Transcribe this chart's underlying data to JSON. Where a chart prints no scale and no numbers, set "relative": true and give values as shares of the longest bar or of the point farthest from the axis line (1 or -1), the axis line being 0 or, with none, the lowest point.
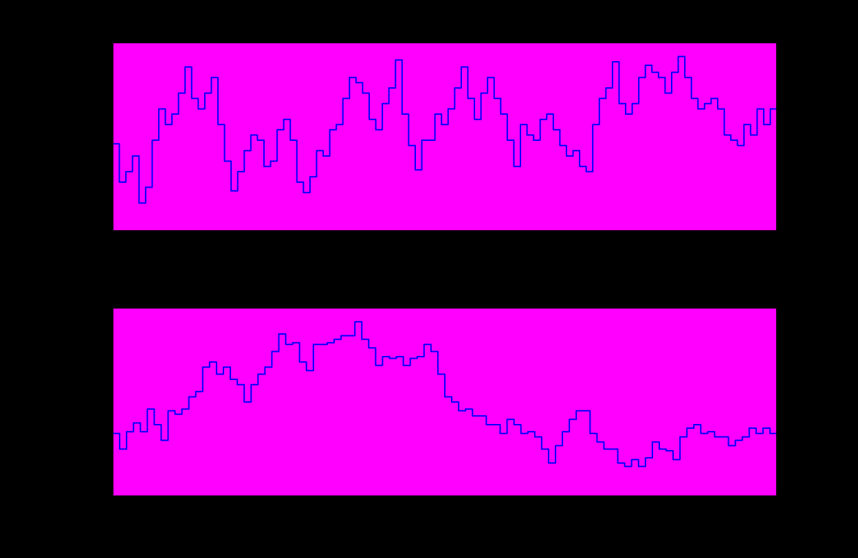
{
  "chart_data": [
    {
      "type": "step",
      "relative": true,
      "categories": [
        null,
        null,
        null,
        null,
        null,
        null,
        null,
        null,
        null,
        null,
        null,
        null,
        null,
        null,
        null,
        null,
        null,
        null,
        null,
        null,
        null,
        null,
        null,
        null,
        null,
        null,
        null,
        null,
        null,
        null,
        null,
        null,
        null,
        null,
        null,
        null,
        null,
        null,
        null,
        null,
        null,
        null,
        null,
        null,
        null,
        null,
        null,
        null,
        null,
        null,
        null,
        null,
        null,
        null,
        null,
        null,
        null,
        null,
        null,
        null,
        null,
        null,
        null,
        null,
        null,
        null,
        null,
        null,
        null,
        null,
        null,
        null,
        null,
        null,
        null,
        null,
        null,
        null,
        null,
        null,
        null,
        null,
        null,
        null,
        null,
        null,
        null,
        null,
        null,
        null,
        null,
        null,
        null,
        null,
        null,
        null,
        null,
        null,
        null,
        null,
        null
      ],
      "series": [
        {
          "color": "#0000ff",
          "values": [
            0.5,
            0.28,
            0.34,
            0.43,
            0.16,
            0.25,
            0.52,
            0.7,
            0.61,
            0.67,
            0.79,
            0.94,
            0.76,
            0.7,
            0.79,
            0.88,
            0.61,
            0.4,
            0.23,
            0.34,
            0.46,
            0.55,
            0.52,
            0.37,
            0.4,
            0.58,
            0.64,
            0.52,
            0.28,
            0.22,
            0.31,
            0.46,
            0.43,
            0.58,
            0.61,
            0.76,
            0.88,
            0.85,
            0.79,
            0.64,
            0.58,
            0.73,
            0.82,
            0.98,
            0.67,
            0.49,
            0.35,
            0.52,
            0.52,
            0.67,
            0.61,
            0.7,
            0.82,
            0.94,
            0.76,
            0.64,
            0.79,
            0.88,
            0.76,
            0.67,
            0.52,
            0.37,
            0.61,
            0.55,
            0.52,
            0.64,
            0.67,
            0.58,
            0.49,
            0.43,
            0.46,
            0.37,
            0.34,
            0.61,
            0.76,
            0.82,
            0.97,
            0.73,
            0.67,
            0.73,
            0.88,
            0.95,
            0.91,
            0.88,
            0.79,
            0.91,
            1,
            0.88,
            0.76,
            0.7,
            0.73,
            0.76,
            0.7,
            0.55,
            0.52,
            0.49,
            0.61,
            0.55,
            0.7,
            0.61,
            0.7
          ]
        }
      ]
    },
    {
      "type": "step",
      "relative": true,
      "categories": [
        null,
        null,
        null,
        null,
        null,
        null,
        null,
        null,
        null,
        null,
        null,
        null,
        null,
        null,
        null,
        null,
        null,
        null,
        null,
        null,
        null,
        null,
        null,
        null,
        null,
        null,
        null,
        null,
        null,
        null,
        null,
        null,
        null,
        null,
        null,
        null,
        null,
        null,
        null,
        null,
        null,
        null,
        null,
        null,
        null,
        null,
        null,
        null,
        null,
        null,
        null,
        null,
        null,
        null,
        null,
        null,
        null,
        null,
        null,
        null,
        null,
        null,
        null,
        null,
        null,
        null,
        null,
        null,
        null,
        null,
        null,
        null,
        null,
        null,
        null,
        null,
        null,
        null,
        null,
        null,
        null,
        null,
        null,
        null,
        null,
        null,
        null,
        null,
        null,
        null,
        null,
        null,
        null,
        null,
        null,
        null
      ],
      "series": [
        {
          "color": "#0000ff",
          "values": [
            0.36,
            0.27,
            0.37,
            0.42,
            0.37,
            0.5,
            0.41,
            0.32,
            0.49,
            0.47,
            0.5,
            0.57,
            0.6,
            0.74,
            0.77,
            0.7,
            0.74,
            0.67,
            0.64,
            0.54,
            0.64,
            0.7,
            0.74,
            0.83,
            0.93,
            0.87,
            0.88,
            0.77,
            0.72,
            0.87,
            0.87,
            0.88,
            0.9,
            0.92,
            0.92,
            1,
            0.9,
            0.85,
            0.75,
            0.8,
            0.79,
            0.8,
            0.75,
            0.79,
            0.8,
            0.87,
            0.83,
            0.7,
            0.57,
            0.54,
            0.49,
            0.5,
            0.46,
            0.46,
            0.41,
            0.41,
            0.36,
            0.44,
            0.41,
            0.36,
            0.37,
            0.34,
            0.27,
            0.19,
            0.29,
            0.37,
            0.44,
            0.49,
            0.49,
            0.36,
            0.31,
            0.27,
            0.27,
            0.19,
            0.17,
            0.21,
            0.17,
            0.22,
            0.31,
            0.27,
            0.26,
            0.21,
            0.34,
            0.39,
            0.41,
            0.36,
            0.37,
            0.34,
            0.34,
            0.29,
            0.32,
            0.34,
            0.39,
            0.36,
            0.39,
            0.36
          ]
        }
      ]
    }
  ]
}
